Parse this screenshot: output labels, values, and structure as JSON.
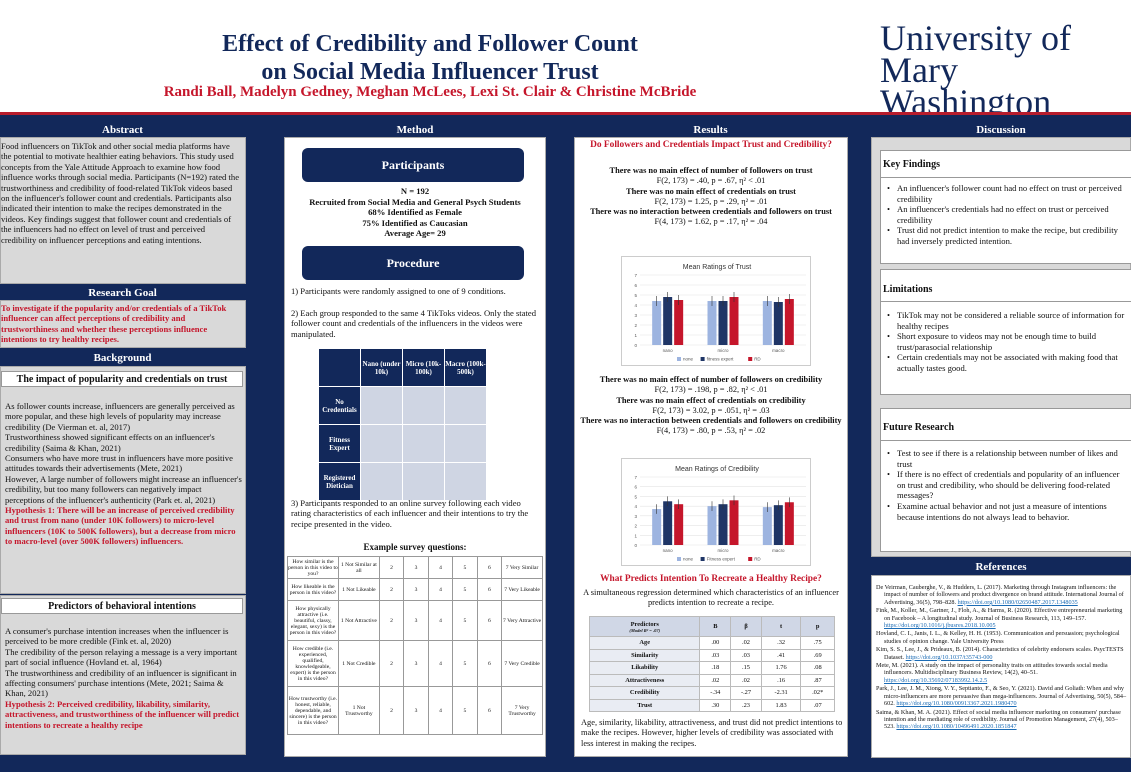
{
  "header": {
    "title_line1": "Effect of Credibility and Follower Count",
    "title_line2": "on Social Media Influencer Trust",
    "authors": "Randi Ball, Madelyn Gedney, Meghan McLees, Lexi St. Clair & Christine McBride",
    "logo_line1": "University of",
    "logo_line2": "Mary Washington"
  },
  "abstract": {
    "title": "Abstract",
    "text": "Food influencers on TikTok and other social media platforms have the potential to motivate healthier eating behaviors. This study used concepts from the Yale Attitude Approach to examine how food influence works through social media. Participants (N=192) rated the trustworthiness and credibility of food-related TikTok videos based on the influencer's follower count and credentials. Participants also indicated their intention to make the recipes demonstrated in the videos. Key findings suggest that follower count and credentials of the influencers had no effect on level of trust and perceived credibility on influencer perceptions and eating intentions."
  },
  "goal": {
    "title": "Research Goal",
    "text": "To investigate if the popularity and/or credentials of a TikTok influencer can affect perceptions of credibility and trustworthiness and whether these perceptions influence intentions to try healthy recipes."
  },
  "background": {
    "title": "Background",
    "sub1": "The impact of popularity and credentials on trust",
    "p1": "As follower counts increase, influencers are generally perceived as more popular, and these high levels of popularity may increase credibility (De Vierman et. al, 2017)",
    "p2": "Trustworthiness showed significant effects on an influencer's credibility (Saima & Khan, 2021)",
    "p3": "Consumers who have more trust in influencers have more positive attitudes towards their advertisements (Mete, 2021)",
    "p4": "However, A large number of followers might increase an influencer's credibility, but too many followers can negatively impact perceptions of the influencer's authenticity (Park et. al, 2021)",
    "h1": "Hypothesis 1: There will be an increase of perceived credibility and trust from nano (under 10K followers) to micro-level influencers (10K to 500K followers), but a decrease from micro to macro-level (over 500K followers) influencers.",
    "sub2": "Predictors of behavioral intentions",
    "q1": "A consumer's purchase intention increases when the influencer is perceived to be more credible (Fink et. al, 2020)",
    "q2": "The credibility of the person relaying a message is a very important part of social influence (Hovland et. al, 1964)",
    "q3": "The trustworthiness and credibility of an influencer is significant in affecting consumers' purchase intentions (Mete, 2021; Saima & Khan, 2021)",
    "h2": "Hypothesis 2: Perceived credibility, likability, similarity, attractiveness, and trustworthiness of the influencer will predict intentions to recreate a healthy recipe"
  },
  "method": {
    "title": "Method",
    "participants_btn": "Participants",
    "n": "N = 192",
    "l1": "Recruited from Social Media and General Psych Students",
    "l2": "68% Identified as Female",
    "l3": "75% Identified as Caucasian",
    "l4": "Average Age= 29",
    "procedure_btn": "Procedure",
    "s1": "1) Participants were randomly assigned to one of 9 conditions.",
    "s2": "2) Each group responded to the same 4 TikToks videos. Only the stated follower count and credentials of the influencers in the videos were manipulated.",
    "cols": [
      "Nano (under 10k)",
      "Micro (10k-100k)",
      "Macro (100k-500k)"
    ],
    "rows": [
      "No Credentials",
      "Fitness Expert",
      "Registered Dietician"
    ],
    "s3": "3) Participants responded to an online survey following each video rating characteristics of each influencer and their intentions to try the recipe presented in the video.",
    "survey_title": "Example survey questions:",
    "survey": [
      {
        "q": "How similar is the person in this video to you?",
        "lo": "1 Not Similar at all",
        "hi": "7 Very Similar"
      },
      {
        "q": "How likeable is the person in this video?",
        "lo": "1 Not Likeable",
        "hi": "7 Very Likeable"
      },
      {
        "q": "How physically attractive (i.e. beautiful, classy, elegant, sexy) is the person in this video?",
        "lo": "1 Not Attractive",
        "hi": "7 Very Attractive"
      },
      {
        "q": "How credible (i.e. experienced, qualified, knowledgeable, expert) is the person in this video?",
        "lo": "1 Not Credible",
        "hi": "7 Very Credible"
      },
      {
        "q": "How trustworthy (i.e. honest, reliable, dependable, and sincere) is the person in this video?",
        "lo": "1 Not Trustworthy",
        "hi": "7 Very Trustworthy"
      }
    ],
    "mid": [
      "2",
      "3",
      "4",
      "5",
      "6"
    ]
  },
  "results": {
    "title": "Results",
    "q1": "Do Followers and Credentials Impact Trust and Credibility?",
    "t1": "There was no main effect of number of followers on trust",
    "s1": "F(2, 173) = .40, p = .67, η² < .01",
    "t2": "There was no main effect of credentials on trust",
    "s2": "F(2, 173) = 1.25, p = .29, η² = .01",
    "t3": "There was no interaction between credentials and followers on trust",
    "s3": "F(4, 173) = 1.62, p = .17, η² = .04",
    "t4": "There was no main effect of number of followers on credibility",
    "s4": "F(2, 173) = .198, p = .82, η² < .01",
    "t5": "There was no main effect of credentials on credibility",
    "s5": "F(2, 173) = 3.02, p = .051, η² = .03",
    "t6": "There was no interaction between credentials and followers on credibility",
    "s6": "F(4, 173) = .80, p = .53, η² = .02",
    "q2": "What Predicts Intention To Recreate a Healthy Recipe?",
    "r1": "A simultaneous regression determined which characteristics of an influencer predicts intention to recreate a recipe.",
    "reg_head": [
      "Predictors",
      "B",
      "β",
      "t",
      "p"
    ],
    "reg_note": "(Model R² = .07)",
    "reg": [
      [
        "Age",
        ".00",
        ".02",
        ".32",
        ".75"
      ],
      [
        "Similarity",
        ".03",
        ".03",
        ".41",
        ".69"
      ],
      [
        "Likability",
        ".18",
        ".15",
        "1.76",
        ".08"
      ],
      [
        "Attractiveness",
        ".02",
        ".02",
        ".16",
        ".87"
      ],
      [
        "Credibility",
        "-.34",
        "-.27",
        "-2.31",
        ".02*"
      ],
      [
        "Trust",
        ".30",
        ".23",
        "1.83",
        ".07"
      ]
    ],
    "r2": "Age, similarity, likability, attractiveness, and trust did not predict intentions to make the recipes. However, higher levels of credibility was associated with less interest in making the recipes."
  },
  "chart_data": [
    {
      "type": "bar",
      "title": "Mean Ratings of Trust",
      "categories": [
        "nano",
        "micro",
        "macro"
      ],
      "series": [
        {
          "name": "none",
          "values": [
            4.4,
            4.4,
            4.4
          ]
        },
        {
          "name": "fitness expert",
          "values": [
            4.8,
            4.4,
            4.3
          ]
        },
        {
          "name": "RD",
          "values": [
            4.5,
            4.8,
            4.6
          ]
        }
      ],
      "ylim": [
        0,
        7
      ]
    },
    {
      "type": "bar",
      "title": "Mean Ratings of Credibility",
      "categories": [
        "nano",
        "micro",
        "macro"
      ],
      "series": [
        {
          "name": "none",
          "values": [
            3.7,
            4.0,
            3.9
          ]
        },
        {
          "name": "Fitness expert",
          "values": [
            4.5,
            4.2,
            4.1
          ]
        },
        {
          "name": "RD",
          "values": [
            4.2,
            4.6,
            4.4
          ]
        }
      ],
      "ylim": [
        0,
        7
      ]
    }
  ],
  "colors": [
    "#9db4e0",
    "#1f3566",
    "#c5162b"
  ],
  "discussion": {
    "title": "Discussion",
    "kf": "Key Findings",
    "kf_items": [
      "An influencer's follower count had no effect on trust or perceived credibility",
      "An influencer's credentials had no effect on trust or perceived credibility",
      "Trust did not predict intention to make the recipe, but credibility had inversely predicted intention."
    ],
    "lim": "Limitations",
    "lim_items": [
      "TikTok may not be considered a reliable source of information for healthy recipes",
      "Short exposure to videos may not be enough time to build trust/parasocial relationship",
      "Certain credentials may not be associated with making food that actually tastes good."
    ],
    "fr": "Future Research",
    "fr_items": [
      "Test to see if there is a relationship between number of likes and trust",
      "If there is no effect of credentials and popularity of an influencer on trust and credibility, who should be delivering food-related messages?",
      "Examine actual behavior and not just a measure of intentions because intentions do not always lead to behavior."
    ]
  },
  "references": {
    "title": "References",
    "items": [
      "De Veirman, Cauberghe, V., & Hudders, L. (2017). Marketing through Instagram influencers: the impact of number of followers and product divergence on brand attitude. International Journal of Advertising, 36(5), 798–828. https://doi.org/10.1080/02650487.2017.1348035",
      "Fink, M., Koller, M., Gartner, J., Floh, A., & Harms, R. (2020). Effective entrepreneurial marketing on Facebook – A longitudinal study. Journal of Business Research, 113, 149–157. https://doi.org/10.1016/j.jbusres.2018.10.005",
      "Hovland, C. I., Janis, I. L., & Kelley, H. H. (1953). Communication and persuasion; psychological studies of opinion change. Yale University Press",
      "Kim, S. S., Lee, J., & Prideaux, B. (2014). Characteristics of celebrity endorsers scales. PsycTESTS Dataset. https://doi.org/10.1037/t35743-000",
      "Mete, M. (2021). A study on the impact of personality traits on attitudes towards social media influencers. Multidisciplinary Business Review, 14(2), 40–51. https://doi.org/10.35692/07183992.14.2.5",
      "Park, J., Lee, J. M., Xiong, V. Y., Septianto, F., & Seo, Y. (2021). David and Goliath: When and why micro-influencers are more persuasive than mega-influencers. Journal of Advertising, 50(5), 584–602. https://doi.org/10.1080/00913367.2021.1980470",
      "Saima, & Khan, M. A. (2021). Effect of social media influencer marketing on consumers' purchase intention and the mediating role of credibility. Journal of Promotion Management, 27(4), 503–523. https://doi.org/10.1080/10496491.2020.1851847"
    ]
  }
}
